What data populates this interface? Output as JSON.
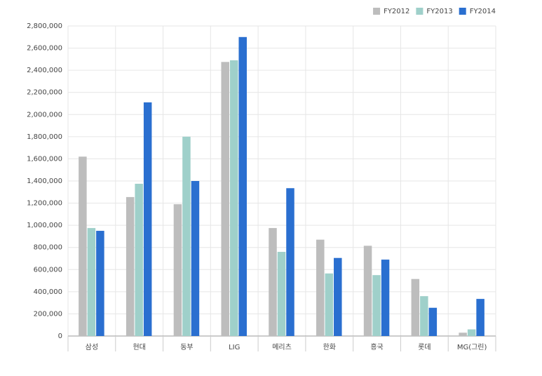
{
  "chart_data": {
    "type": "bar",
    "categories": [
      "삼성",
      "현대",
      "동부",
      "LIG",
      "메리츠",
      "한화",
      "흥국",
      "롯데",
      "MG(그린)"
    ],
    "series": [
      {
        "name": "FY2012",
        "color": "#bdbdbd",
        "values": [
          1620000,
          1255000,
          1190000,
          2475000,
          975000,
          870000,
          815000,
          515000,
          30000
        ]
      },
      {
        "name": "FY2013",
        "color": "#9fd0ca",
        "values": [
          975000,
          1375000,
          1800000,
          2490000,
          760000,
          565000,
          550000,
          360000,
          60000
        ]
      },
      {
        "name": "FY2014",
        "color": "#2a6fd0",
        "values": [
          950000,
          2110000,
          1400000,
          2700000,
          1335000,
          705000,
          690000,
          255000,
          335000
        ]
      }
    ],
    "ylim": [
      0,
      2800000
    ],
    "yticks": [
      0,
      {
        "value": 200000,
        "label": "200,000"
      },
      {
        "value": 400000,
        "label": "400,000"
      },
      {
        "value": 600000,
        "label": "600,000"
      },
      {
        "value": 800000,
        "label": "800,000"
      },
      {
        "value": 1000000,
        "label": "1,000,000"
      },
      {
        "value": 1200000,
        "label": "1,200,000"
      },
      {
        "value": 1400000,
        "label": "1,400,000"
      },
      {
        "value": 1600000,
        "label": "1,600,000"
      },
      {
        "value": 1800000,
        "label": "1,800,000"
      },
      {
        "value": 2000000,
        "label": "2,000,000"
      },
      {
        "value": 2200000,
        "label": "2,200,000"
      },
      {
        "value": 2400000,
        "label": "2,400,000"
      },
      {
        "value": 2600000,
        "label": "2,600,000"
      },
      {
        "value": 2800000,
        "label": "2,800,000"
      }
    ],
    "grid": true,
    "legend": "top-right"
  }
}
